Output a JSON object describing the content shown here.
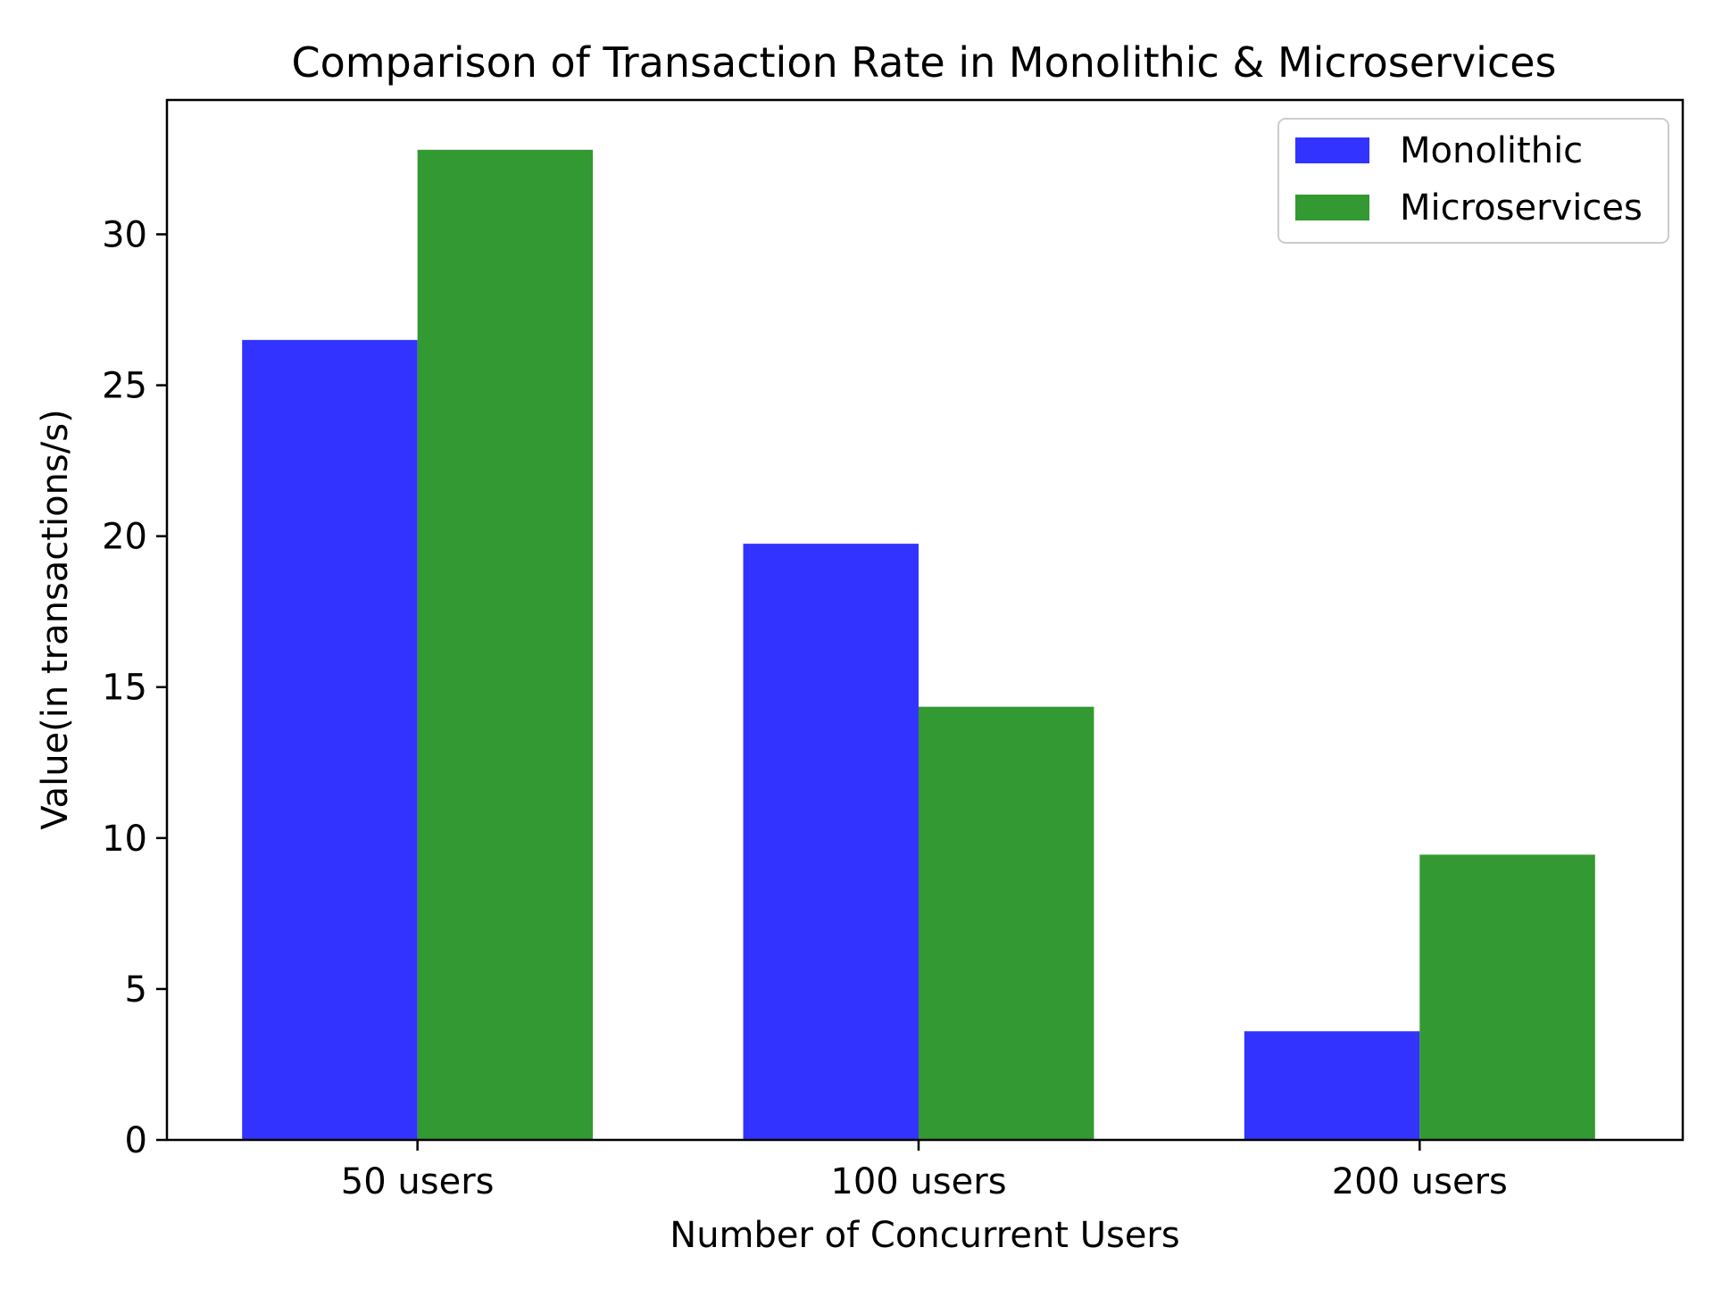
{
  "chart_data": {
    "type": "bar",
    "title": "Comparison of Transaction Rate in Monolithic & Microservices",
    "xlabel": "Number of Concurrent Users",
    "ylabel": "Value(in transactions/s)",
    "categories": [
      "50 users",
      "100 users",
      "200 users"
    ],
    "series": [
      {
        "name": "Monolithic",
        "values": [
          26.5,
          19.75,
          3.6
        ],
        "color": "#3333ff"
      },
      {
        "name": "Microservices",
        "values": [
          32.8,
          14.35,
          9.45
        ],
        "color": "#339933"
      }
    ],
    "ylim": [
      0,
      34.45
    ],
    "yticks": [
      0,
      5,
      10,
      15,
      20,
      25,
      30
    ],
    "grid": false,
    "legend": "top-right"
  }
}
